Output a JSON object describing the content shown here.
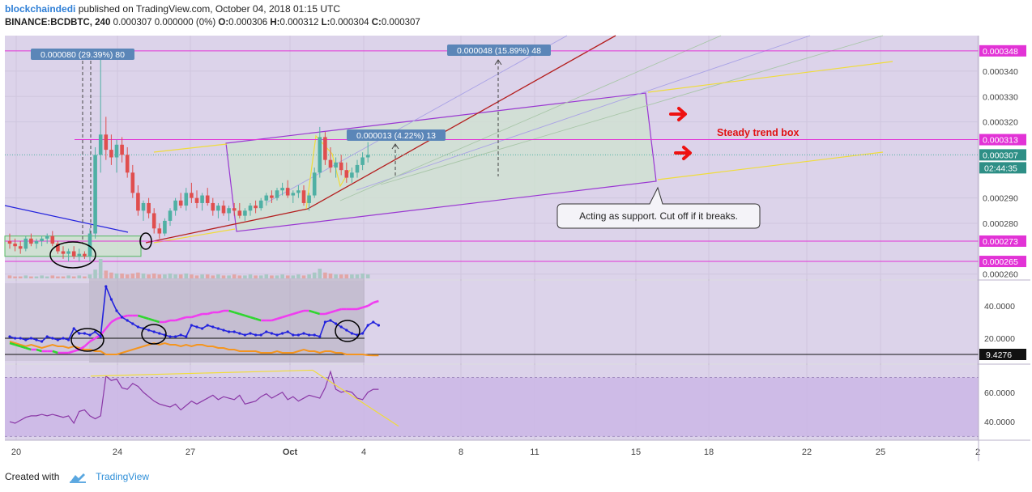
{
  "header": {
    "publisher": "blockchaindedi",
    "published_text": " published on TradingView.com, October 04, 2018 01:15 UTC",
    "symbol": "BINANCE:BCDBTC, 240",
    "last": "0.000307",
    "change": "0.000000 (0%)",
    "o_label": "O:",
    "o": "0.000306",
    "h_label": "H:",
    "h": "0.000312",
    "l_label": "L:",
    "l": "0.000304",
    "c_label": "C:",
    "c": "0.000307"
  },
  "footer": {
    "created_with": "Created with",
    "brand": "TradingView"
  },
  "colors": {
    "background": "#dcd3ea",
    "up": "#4fb0a4",
    "down": "#e04e4e",
    "magenta": "#e233d6",
    "box_fill": "#cfe3cf",
    "box_border": "#9a38d2",
    "dark_red": "#b41e1e",
    "yellow": "#f0dc3a",
    "blue": "#2222dd",
    "orange": "#f5951e",
    "green": "#2fd62f",
    "pink": "#f03cf0",
    "purple_rsi": "#8a37a6",
    "label_blue": "#5b86b8"
  },
  "chart_data": {
    "type": "candlestick",
    "price_axis": {
      "ticks": [
        "0.000340",
        "0.000330",
        "0.000320",
        "0.000290",
        "0.000280",
        "0.000260"
      ],
      "range": [
        0.000258,
        0.000354
      ],
      "last_price": "0.000307",
      "countdown": "02:44:35",
      "marked_levels": [
        {
          "value": "0.000348"
        },
        {
          "value": "0.000313"
        },
        {
          "value": "0.000273"
        },
        {
          "value": "0.000265"
        }
      ]
    },
    "x_axis": {
      "ticks": [
        "20",
        "24",
        "27",
        "Oct",
        "4",
        "8",
        "11",
        "15",
        "18",
        "22",
        "25",
        "2"
      ]
    },
    "candles_ohlc": [
      [
        0.000273,
        0.000276,
        0.00027,
        0.000272
      ],
      [
        0.000272,
        0.000274,
        0.000269,
        0.000271
      ],
      [
        0.000271,
        0.000273,
        0.000268,
        0.00027
      ],
      [
        0.00027,
        0.000275,
        0.000269,
        0.000274
      ],
      [
        0.000274,
        0.000276,
        0.000271,
        0.000272
      ],
      [
        0.000272,
        0.000274,
        0.00027,
        0.000273
      ],
      [
        0.000273,
        0.000275,
        0.000271,
        0.000274
      ],
      [
        0.000274,
        0.000276,
        0.000272,
        0.000275
      ],
      [
        0.000275,
        0.000277,
        0.000271,
        0.000272
      ],
      [
        0.000272,
        0.000273,
        0.000268,
        0.000269
      ],
      [
        0.000269,
        0.000271,
        0.000266,
        0.000268
      ],
      [
        0.000268,
        0.00027,
        0.000265,
        0.000269
      ],
      [
        0.000269,
        0.000271,
        0.000266,
        0.000267
      ],
      [
        0.000267,
        0.00027,
        0.000265,
        0.000268
      ],
      [
        0.000268,
        0.000269,
        0.000266,
        0.000267
      ],
      [
        0.000267,
        0.000278,
        0.000265,
        0.000276
      ],
      [
        0.000276,
        0.00031,
        0.000274,
        0.000307
      ],
      [
        0.000307,
        0.000348,
        0.0003,
        0.000315
      ],
      [
        0.000315,
        0.000322,
        0.000305,
        0.000309
      ],
      [
        0.000309,
        0.000315,
        0.000303,
        0.000306
      ],
      [
        0.000306,
        0.000313,
        0.0003,
        0.000311
      ],
      [
        0.000311,
        0.000314,
        0.000304,
        0.000307
      ],
      [
        0.000307,
        0.00031,
        0.000298,
        0.0003
      ],
      [
        0.0003,
        0.000303,
        0.00029,
        0.000292
      ],
      [
        0.000292,
        0.000295,
        0.000283,
        0.000285
      ],
      [
        0.000285,
        0.000289,
        0.000281,
        0.000288
      ],
      [
        0.000288,
        0.00029,
        0.000282,
        0.000284
      ],
      [
        0.000284,
        0.000286,
        0.000276,
        0.000278
      ],
      [
        0.000278,
        0.00028,
        0.000274,
        0.000276
      ],
      [
        0.000276,
        0.000282,
        0.000275,
        0.000281
      ],
      [
        0.000281,
        0.000286,
        0.000279,
        0.000285
      ],
      [
        0.000285,
        0.00029,
        0.000283,
        0.000289
      ],
      [
        0.000289,
        0.000292,
        0.000286,
        0.000287
      ],
      [
        0.000287,
        0.000294,
        0.000285,
        0.000292
      ],
      [
        0.000292,
        0.000296,
        0.000288,
        0.00029
      ],
      [
        0.00029,
        0.000293,
        0.000286,
        0.000288
      ],
      [
        0.000288,
        0.000292,
        0.000285,
        0.000291
      ],
      [
        0.000291,
        0.000294,
        0.000287,
        0.000288
      ],
      [
        0.000288,
        0.00029,
        0.000283,
        0.000285
      ],
      [
        0.000285,
        0.000288,
        0.000282,
        0.000287
      ],
      [
        0.000287,
        0.000289,
        0.000283,
        0.000284
      ],
      [
        0.000284,
        0.000287,
        0.000281,
        0.000286
      ],
      [
        0.000286,
        0.000288,
        0.000283,
        0.000285
      ],
      [
        0.000285,
        0.000288,
        0.000282,
        0.000283
      ],
      [
        0.000283,
        0.000286,
        0.000281,
        0.000285
      ],
      [
        0.000285,
        0.000288,
        0.000283,
        0.000287
      ],
      [
        0.000287,
        0.000289,
        0.000284,
        0.000286
      ],
      [
        0.000286,
        0.00029,
        0.000285,
        0.000289
      ],
      [
        0.000289,
        0.000292,
        0.000287,
        0.000291
      ],
      [
        0.000291,
        0.000293,
        0.000288,
        0.00029
      ],
      [
        0.00029,
        0.000294,
        0.000289,
        0.000293
      ],
      [
        0.000293,
        0.000296,
        0.000291,
        0.000294
      ],
      [
        0.000294,
        0.000297,
        0.00029,
        0.000291
      ],
      [
        0.000291,
        0.000293,
        0.000288,
        0.000292
      ],
      [
        0.000292,
        0.000295,
        0.00029,
        0.000293
      ],
      [
        0.000293,
        0.000295,
        0.000287,
        0.000288
      ],
      [
        0.000288,
        0.000292,
        0.000285,
        0.000291
      ],
      [
        0.000291,
        0.000302,
        0.00029,
        0.0003
      ],
      [
        0.0003,
        0.000318,
        0.000298,
        0.000314
      ],
      [
        0.000314,
        0.000316,
        0.000303,
        0.000305
      ],
      [
        0.000305,
        0.00031,
        0.0003,
        0.000302
      ],
      [
        0.000302,
        0.000306,
        0.000298,
        0.000304
      ],
      [
        0.000304,
        0.000307,
        0.000299,
        0.000301
      ],
      [
        0.000301,
        0.000304,
        0.000296,
        0.000298
      ],
      [
        0.000298,
        0.000302,
        0.000296,
        0.0003
      ],
      [
        0.0003,
        0.000305,
        0.000298,
        0.000303
      ],
      [
        0.000303,
        0.000308,
        0.000301,
        0.000306
      ],
      [
        0.000306,
        0.000312,
        0.000304,
        0.000307
      ]
    ],
    "volume_bars": [
      3,
      2,
      2,
      3,
      2,
      2,
      3,
      2,
      3,
      2,
      2,
      3,
      2,
      3,
      2,
      4,
      9,
      20,
      8,
      6,
      5,
      5,
      4,
      5,
      6,
      5,
      4,
      5,
      4,
      4,
      5,
      4,
      4,
      5,
      4,
      3,
      4,
      4,
      3,
      4,
      3,
      3,
      4,
      3,
      3,
      4,
      3,
      3,
      4,
      3,
      3,
      4,
      3,
      3,
      4,
      3,
      4,
      6,
      10,
      6,
      5,
      4,
      4,
      4,
      4,
      4,
      5,
      4
    ],
    "oscillator": {
      "axis_ticks": [
        "40.0000",
        "20.0000"
      ],
      "range": [
        5,
        55
      ],
      "value_label": "9.4276",
      "baseline": 20,
      "blue": [
        21,
        20,
        20,
        19,
        20,
        19,
        18,
        21,
        20,
        19,
        20,
        19,
        26,
        23,
        23,
        22,
        24,
        21,
        52,
        44,
        37,
        33,
        31,
        29,
        27,
        26,
        25,
        24,
        23,
        22,
        21,
        21,
        22,
        21,
        28,
        27,
        26,
        28,
        27,
        26,
        25,
        24,
        24,
        23,
        22,
        23,
        22,
        22,
        24,
        23,
        22,
        23,
        24,
        22,
        22,
        23,
        22,
        22,
        21,
        30,
        31,
        29,
        27,
        25,
        23,
        22,
        23,
        28,
        30,
        28
      ],
      "orange": [
        18,
        17,
        16,
        15,
        16,
        15,
        14,
        15,
        16,
        15,
        15,
        14,
        15,
        14,
        13,
        13,
        12,
        12,
        10,
        10,
        10,
        11,
        12,
        13,
        14,
        15,
        16,
        17,
        16,
        17,
        16,
        16,
        15,
        16,
        15,
        16,
        16,
        15,
        15,
        14,
        14,
        13,
        13,
        12,
        12,
        12,
        12,
        11,
        11,
        11,
        12,
        11,
        11,
        11,
        12,
        13,
        12,
        12,
        11,
        12,
        12,
        11,
        11,
        10,
        10,
        10,
        10,
        9.5,
        9.4,
        9.4
      ],
      "dmi_plus": [
        17,
        16,
        15,
        14,
        13,
        13,
        12,
        12,
        12,
        11,
        11,
        11,
        12,
        13,
        15,
        18,
        20,
        22,
        26,
        30,
        32,
        33,
        34,
        34,
        34,
        33,
        32,
        31,
        30,
        30,
        31,
        31,
        32,
        33,
        33,
        34,
        35,
        35,
        36,
        36,
        37,
        37,
        36,
        35,
        34,
        33,
        32,
        31,
        31,
        31,
        32,
        33,
        34,
        35,
        36,
        37,
        37,
        36,
        35,
        35,
        36,
        37,
        38,
        38,
        38,
        38,
        39,
        40,
        42,
        43
      ]
    },
    "rsi": {
      "axis_ticks": [
        "60.0000",
        "40.0000"
      ],
      "range": [
        28,
        78
      ],
      "values": [
        40,
        39,
        41,
        43,
        44,
        44,
        45,
        44,
        45,
        44,
        43,
        44,
        39,
        47,
        48,
        44,
        42,
        44,
        71,
        68,
        69,
        63,
        62,
        66,
        64,
        60,
        57,
        54,
        52,
        51,
        50,
        52,
        48,
        51,
        54,
        52,
        54,
        56,
        58,
        55,
        57,
        56,
        55,
        58,
        52,
        53,
        54,
        57,
        59,
        56,
        58,
        60,
        55,
        57,
        54,
        56,
        58,
        57,
        56,
        63,
        74,
        62,
        60,
        61,
        60,
        56,
        55,
        60,
        62,
        62
      ]
    },
    "annotations": {
      "range_label_1": "0.000080 (29.39%) 80",
      "range_label_2": "0.000048 (15.89%) 48",
      "range_label_3": "0.000013 (4.22%) 13",
      "title_box": "Steady trend box",
      "callout": "Acting as support. Cut off if it breaks."
    }
  }
}
